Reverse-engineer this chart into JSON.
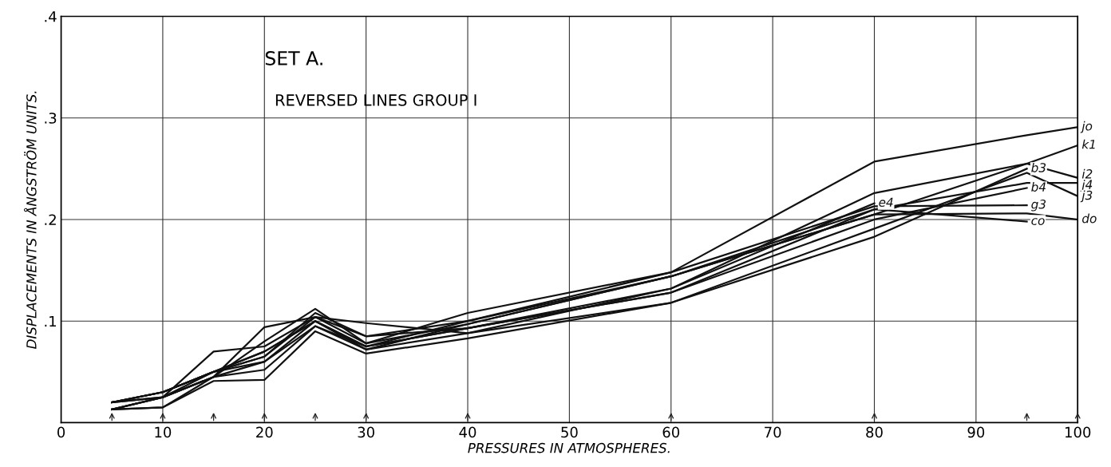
{
  "chart_data": {
    "type": "line",
    "title": "SET A.",
    "subtitle": "REVERSED LINES GROUP I",
    "xlabel": "PRESSURES IN ATMOSPHERES.",
    "ylabel": "DISPLACEMENTS IN ÅNGSTRÖM UNITS.",
    "xlim": [
      0,
      100
    ],
    "ylim": [
      0,
      0.4
    ],
    "xticks": [
      0,
      10,
      20,
      30,
      40,
      50,
      60,
      70,
      80,
      90,
      100
    ],
    "yticks": [
      {
        "value": 0.1,
        "label": ".1"
      },
      {
        "value": 0.2,
        "label": ".2"
      },
      {
        "value": 0.3,
        "label": ".3"
      },
      {
        "value": 0.4,
        "label": ".4"
      }
    ],
    "grid": true,
    "marker": "none",
    "line_style": "solid",
    "legend": false,
    "series": [
      {
        "name": "jo",
        "color": "#111111",
        "x": [
          5,
          10,
          15,
          20,
          25,
          30,
          40,
          60,
          80,
          95,
          100
        ],
        "values": [
          0.02,
          0.03,
          0.05,
          0.07,
          0.1,
          0.075,
          0.1,
          0.148,
          0.257,
          0.283,
          0.291
        ]
      },
      {
        "name": "k1",
        "color": "#111111",
        "x": [
          5,
          10,
          15,
          20,
          25,
          30,
          40,
          60,
          80,
          95,
          100
        ],
        "values": [
          0.02,
          0.025,
          0.07,
          0.075,
          0.104,
          0.078,
          0.097,
          0.144,
          0.205,
          0.255,
          0.273
        ]
      },
      {
        "name": "i2",
        "color": "#111111",
        "x": [
          5,
          10,
          15,
          20,
          25,
          30,
          40,
          60,
          80,
          95,
          100
        ],
        "values": [
          0.013,
          0.025,
          0.045,
          0.094,
          0.104,
          0.098,
          0.088,
          0.132,
          0.226,
          0.255,
          0.241
        ]
      },
      {
        "name": "j4",
        "color": "#111111",
        "x": [
          5,
          10,
          15,
          20,
          25,
          30,
          40,
          60,
          80,
          95,
          100
        ],
        "values": [
          0.02,
          0.03,
          0.05,
          0.065,
          0.108,
          0.085,
          0.093,
          0.128,
          0.21,
          0.236,
          0.236
        ]
      },
      {
        "name": "j3",
        "color": "#111111",
        "x": [
          5,
          10,
          15,
          20,
          25,
          30,
          40,
          60,
          80,
          95,
          100
        ],
        "values": [
          0.013,
          0.015,
          0.041,
          0.042,
          0.09,
          0.068,
          0.083,
          0.118,
          0.191,
          0.246,
          0.223
        ]
      },
      {
        "name": "b3",
        "color": "#111111",
        "x": [
          5,
          10,
          15,
          20,
          25,
          30,
          40,
          60,
          80,
          95
        ],
        "values": [
          0.013,
          0.015,
          0.045,
          0.052,
          0.095,
          0.072,
          0.088,
          0.118,
          0.183,
          0.25
        ]
      },
      {
        "name": "b4",
        "color": "#111111",
        "x": [
          5,
          10,
          15,
          20,
          25,
          30,
          40,
          60,
          80,
          95
        ],
        "values": [
          0.02,
          0.03,
          0.05,
          0.06,
          0.1,
          0.075,
          0.093,
          0.128,
          0.2,
          0.231
        ]
      },
      {
        "name": "g3",
        "color": "#111111",
        "x": [
          5,
          10,
          15,
          20,
          25,
          30,
          40,
          60,
          80,
          95
        ],
        "values": [
          0.02,
          0.025,
          0.045,
          0.08,
          0.112,
          0.078,
          0.108,
          0.148,
          0.213,
          0.214
        ]
      },
      {
        "name": "do",
        "color": "#111111",
        "x": [
          5,
          10,
          15,
          20,
          25,
          30,
          40,
          60,
          80,
          95,
          100
        ],
        "values": [
          0.013,
          0.025,
          0.05,
          0.07,
          0.1,
          0.072,
          0.097,
          0.144,
          0.205,
          0.206,
          0.2
        ]
      },
      {
        "name": "co",
        "color": "#111111",
        "x": [
          5,
          10,
          15,
          20,
          25,
          30,
          40,
          60,
          80,
          95
        ],
        "values": [
          0.02,
          0.03,
          0.05,
          0.065,
          0.104,
          0.085,
          0.1,
          0.144,
          0.21,
          0.198
        ]
      },
      {
        "name": "e4",
        "color": "#111111",
        "x": [
          5,
          10,
          15,
          20,
          25,
          30,
          40,
          60,
          80
        ],
        "values": [
          0.013,
          0.025,
          0.045,
          0.06,
          0.095,
          0.075,
          0.093,
          0.132,
          0.216
        ]
      }
    ]
  }
}
